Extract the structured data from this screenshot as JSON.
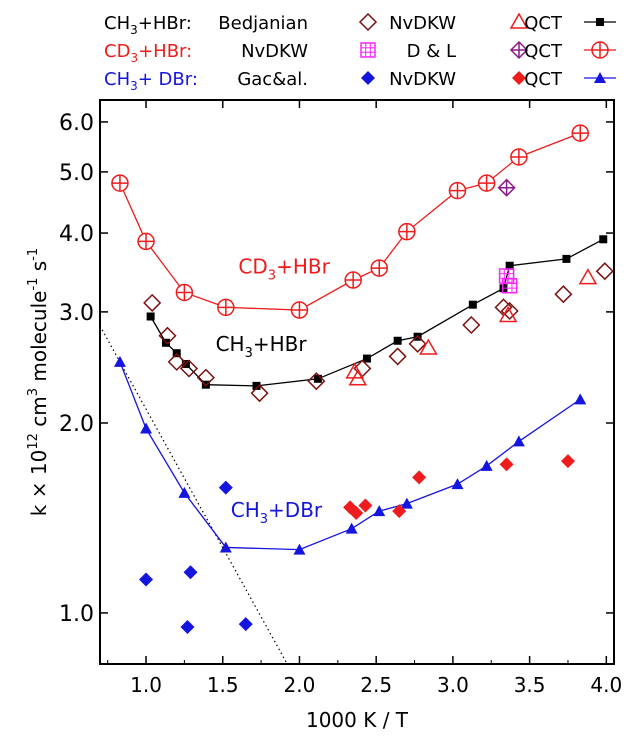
{
  "chart_data": {
    "type": "scatter",
    "xlabel": "1000 K / T",
    "ylabel": "k × 10^12 cm^3 molecule^-1 s^-1",
    "ylabel_parts": {
      "pre": "k × 10",
      "exp1": "12",
      "mid": " cm",
      "exp2": "3",
      "mid2": " molecule",
      "exp3": "-1",
      "post": " s",
      "exp4": "-1"
    },
    "y_scale": "log",
    "xlim": [
      0.7,
      4.05
    ],
    "ylim": [
      0.83,
      6.5
    ],
    "x_ticks": [
      1.0,
      1.5,
      2.0,
      2.5,
      3.0,
      3.5,
      4.0
    ],
    "x_tick_labels": [
      "1.0",
      "1.5",
      "2.0",
      "2.5",
      "3.0",
      "3.5",
      "4.0"
    ],
    "y_ticks": [
      1.0,
      2.0,
      3.0,
      4.0,
      5.0,
      6.0
    ],
    "y_tick_labels": [
      "1.0",
      "2.0",
      "3.0",
      "4.0",
      "5.0",
      "6.0"
    ],
    "colors": {
      "black": "#000000",
      "darkred": "#7a1010",
      "red": "#ee1c1c",
      "blue": "#1515e0",
      "magenta": "#ff22ff",
      "purple": "#8b1a8b"
    },
    "legend": {
      "placement": "top",
      "rows": [
        {
          "label": "CH3+HBr:",
          "label_parts": {
            "a": "CH",
            "sub": "3",
            "b": "+HBr:"
          },
          "color": "#000000",
          "entries": [
            {
              "text": "Bedjanian",
              "marker": "diamond-open",
              "color": "#7a1010"
            },
            {
              "text": "NvDKW",
              "marker": "triangle-open",
              "color": "#ee1c1c"
            },
            {
              "text": "QCT",
              "marker": "square-line",
              "color": "#000000"
            }
          ]
        },
        {
          "label": "CD3+HBr:",
          "label_parts": {
            "a": "CD",
            "sub": "3",
            "b": "+HBr:"
          },
          "color": "#ee1c1c",
          "entries": [
            {
              "text": "NvDKW",
              "marker": "square-grid",
              "color": "#ff22ff"
            },
            {
              "text": "D & L",
              "marker": "diamond-cross",
              "color": "#8b1a8b"
            },
            {
              "text": "QCT",
              "marker": "circle-cross-line",
              "color": "#ee1c1c"
            }
          ]
        },
        {
          "label": "CH3+ DBr:",
          "label_parts": {
            "a": "CH",
            "sub": "3",
            "b": "+ DBr:"
          },
          "color": "#1515e0",
          "entries": [
            {
              "text": "Gac&al.",
              "marker": "diamond-filled",
              "color": "#1515e0"
            },
            {
              "text": "NvDKW",
              "marker": "diamond-filled",
              "color": "#ee1c1c"
            },
            {
              "text": "QCT",
              "marker": "triangle-line",
              "color": "#1515e0"
            }
          ]
        }
      ]
    },
    "annotations": [
      {
        "text": "CD3+HBr",
        "parts": {
          "a": "CD",
          "sub": "3",
          "b": "+HBr"
        },
        "color": "#ee1c1c",
        "x": 1.9,
        "y": 3.45
      },
      {
        "text": "CH3+HBr",
        "parts": {
          "a": "CH",
          "sub": "3",
          "b": "+HBr"
        },
        "color": "#000000",
        "x": 1.75,
        "y": 2.6
      },
      {
        "text": "CH3+DBr",
        "parts": {
          "a": "CH",
          "sub": "3",
          "b": "+DBr"
        },
        "color": "#1515e0",
        "x": 1.85,
        "y": 1.42
      }
    ],
    "series": [
      {
        "name": "CD3+HBr QCT",
        "marker": "circle-cross",
        "color": "#ee1c1c",
        "line": true,
        "x": [
          0.83,
          1.0,
          1.25,
          1.52,
          2.0,
          2.35,
          2.52,
          2.7,
          3.03,
          3.22,
          3.43,
          3.83
        ],
        "y": [
          4.8,
          3.88,
          3.22,
          3.05,
          3.02,
          3.37,
          3.52,
          4.02,
          4.67,
          4.8,
          5.28,
          5.76
        ]
      },
      {
        "name": "CH3+HBr QCT",
        "marker": "square",
        "color": "#000000",
        "line": true,
        "x": [
          1.03,
          1.13,
          1.2,
          1.26,
          1.39,
          1.72,
          2.12,
          2.44,
          2.64,
          2.77,
          3.13,
          3.33,
          3.37,
          3.74,
          3.98
        ],
        "y": [
          2.95,
          2.68,
          2.58,
          2.48,
          2.3,
          2.29,
          2.35,
          2.53,
          2.7,
          2.74,
          3.08,
          3.27,
          3.55,
          3.64,
          3.91
        ]
      },
      {
        "name": "CH3+DBr QCT",
        "marker": "triangle",
        "color": "#1515e0",
        "line": true,
        "x": [
          0.83,
          1.0,
          1.25,
          1.52,
          2.0,
          2.34,
          2.52,
          2.7,
          3.03,
          3.22,
          3.43,
          3.83
        ],
        "y": [
          2.5,
          1.96,
          1.55,
          1.27,
          1.26,
          1.36,
          1.45,
          1.49,
          1.6,
          1.71,
          1.87,
          2.18
        ]
      },
      {
        "name": "CH3+HBr Bedjanian",
        "marker": "diamond-open",
        "color": "#7a1010",
        "line": false,
        "x": [
          1.04,
          1.14,
          1.2,
          1.28,
          1.39,
          1.74,
          2.11,
          2.41,
          2.64,
          2.77,
          3.12,
          3.33,
          3.37,
          3.72,
          3.99
        ],
        "y": [
          3.1,
          2.75,
          2.5,
          2.44,
          2.36,
          2.23,
          2.33,
          2.44,
          2.55,
          2.67,
          2.86,
          3.05,
          3.01,
          3.2,
          3.48
        ]
      },
      {
        "name": "CH3+HBr NvDKW",
        "marker": "triangle-open",
        "color": "#ee1c1c",
        "line": false,
        "x": [
          2.36,
          2.38,
          2.84,
          3.36,
          3.88
        ],
        "y": [
          2.41,
          2.35,
          2.63,
          2.96,
          3.4
        ]
      },
      {
        "name": "CD3+HBr NvDKW",
        "marker": "square-grid",
        "color": "#ff22ff",
        "line": false,
        "x": [
          3.35,
          3.37
        ],
        "y": [
          3.42,
          3.3
        ]
      },
      {
        "name": "CD3+HBr D & L",
        "marker": "diamond-cross",
        "color": "#8b1a8b",
        "line": false,
        "x": [
          3.35
        ],
        "y": [
          4.72
        ]
      },
      {
        "name": "CH3+DBr Gac&al.",
        "marker": "diamond-filled",
        "color": "#1515e0",
        "line": false,
        "x": [
          1.0,
          1.27,
          1.29,
          1.52,
          1.65
        ],
        "y": [
          1.13,
          0.95,
          1.16,
          1.58,
          0.96
        ]
      },
      {
        "name": "CH3+DBr NvDKW",
        "marker": "diamond-filled",
        "color": "#ee1c1c",
        "line": false,
        "x": [
          2.33,
          2.37,
          2.43,
          2.65,
          2.78,
          3.35,
          3.75
        ],
        "y": [
          1.47,
          1.44,
          1.48,
          1.45,
          1.64,
          1.72,
          1.74
        ]
      }
    ],
    "fit_line": {
      "style": "dotted",
      "color": "#000000",
      "x": [
        0.7,
        1.92
      ],
      "y": [
        2.85,
        0.83
      ]
    }
  }
}
